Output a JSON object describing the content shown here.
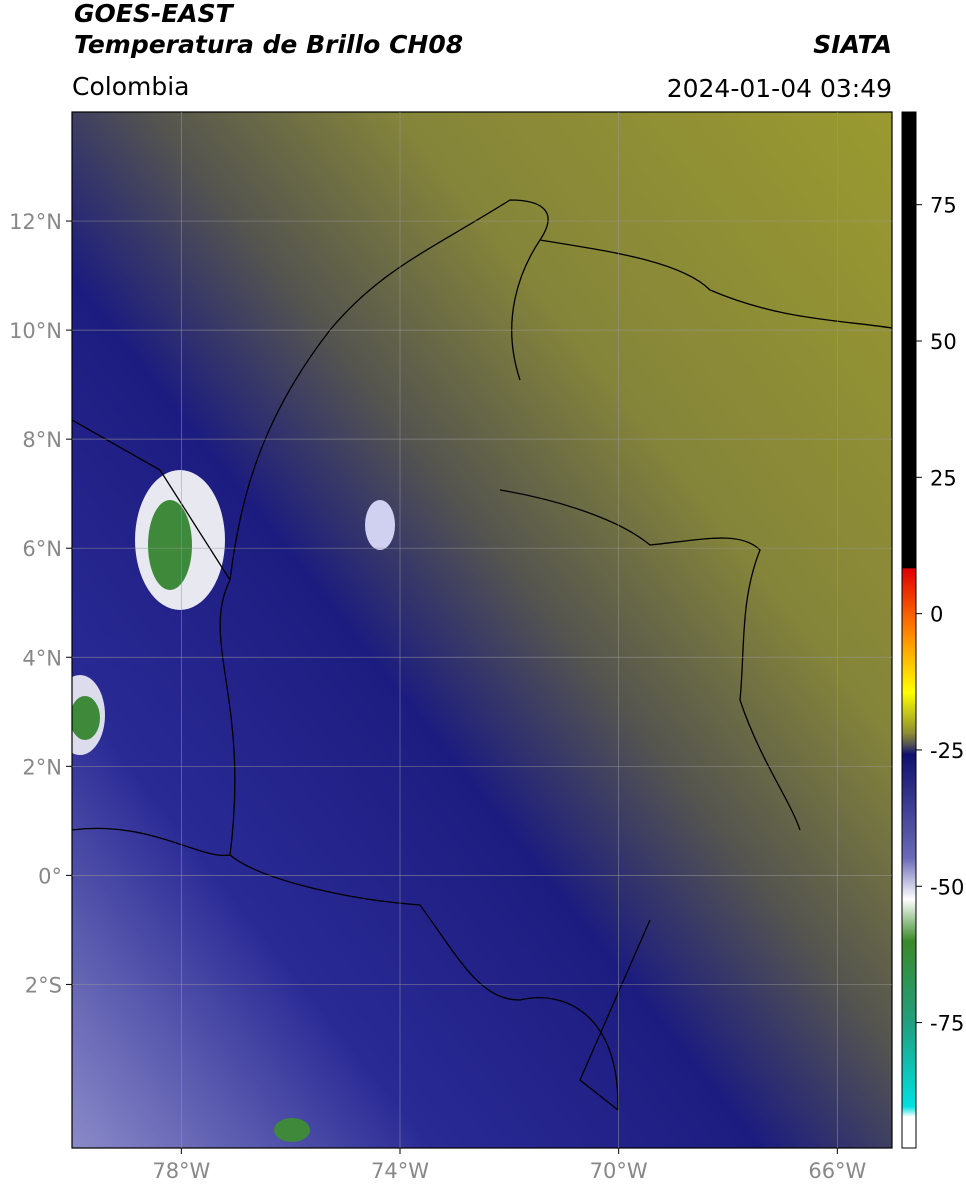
{
  "header": {
    "title": "GOES-EAST",
    "subtitle": "Temperatura de Brillo CH08",
    "source": "SIATA",
    "region": "Colombia",
    "timestamp": "2024-01-04 03:49"
  },
  "map": {
    "xlim": [
      -80,
      -65
    ],
    "ylim": [
      -5,
      14
    ],
    "xticks": [
      {
        "value": -78,
        "label": "78°W"
      },
      {
        "value": -74,
        "label": "74°W"
      },
      {
        "value": -70,
        "label": "70°W"
      },
      {
        "value": -66,
        "label": "66°W"
      }
    ],
    "yticks": [
      {
        "value": 12,
        "label": "12°N"
      },
      {
        "value": 10,
        "label": "10°N"
      },
      {
        "value": 8,
        "label": "8°N"
      },
      {
        "value": 6,
        "label": "6°N"
      },
      {
        "value": 4,
        "label": "4°N"
      },
      {
        "value": 2,
        "label": "2°N"
      },
      {
        "value": 0,
        "label": "0°"
      },
      {
        "value": -2,
        "label": "2°S"
      }
    ],
    "grid": true
  },
  "colorbar": {
    "lim": [
      -98,
      92
    ],
    "ticks": [
      75,
      50,
      25,
      0,
      -25,
      -50,
      -75
    ]
  }
}
